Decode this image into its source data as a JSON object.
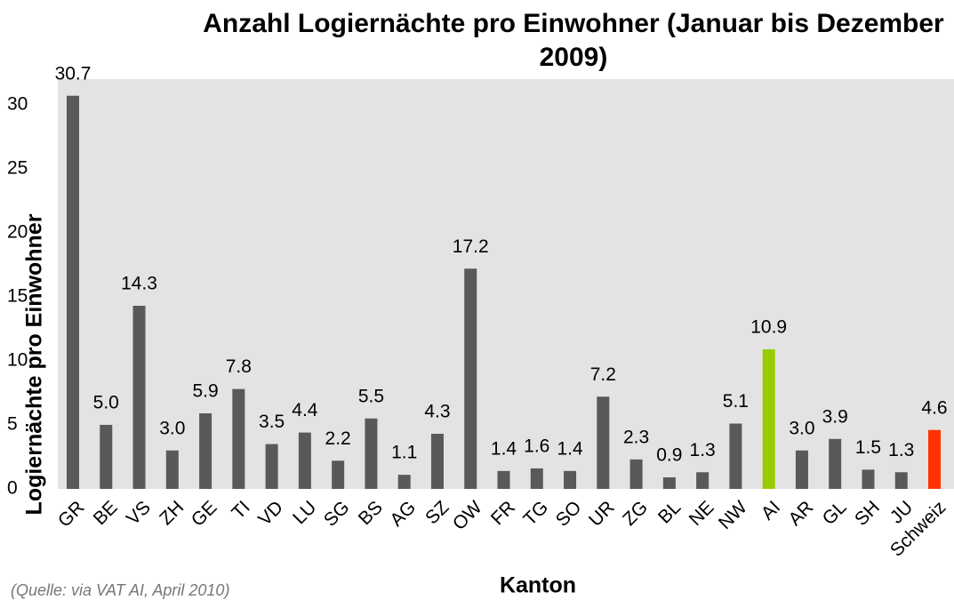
{
  "chart_data": {
    "type": "bar",
    "title": "Anzahl Logiernächte pro Einwohner (Januar bis Dezember 2009)",
    "x_label": "Kanton",
    "y_label": "Logiernächte pro Einwohner",
    "source": "(Quelle: via VAT AI, April 2010)",
    "categories": [
      "GR",
      "BE",
      "VS",
      "ZH",
      "GE",
      "TI",
      "VD",
      "LU",
      "SG",
      "BS",
      "AG",
      "SZ",
      "OW",
      "FR",
      "TG",
      "SO",
      "UR",
      "ZG",
      "BL",
      "NE",
      "NW",
      "AI",
      "AR",
      "GL",
      "SH",
      "JU",
      "Schweiz"
    ],
    "values": [
      30.7,
      5.0,
      14.3,
      3.0,
      5.9,
      7.8,
      3.5,
      4.4,
      2.2,
      5.5,
      1.1,
      4.3,
      17.2,
      1.4,
      1.6,
      1.4,
      7.2,
      2.3,
      0.9,
      1.3,
      5.1,
      10.9,
      3.0,
      3.9,
      1.5,
      1.3,
      4.6
    ],
    "value_labels": [
      "30.7",
      "5.0",
      "14.3",
      "3.0",
      "5.9",
      "7.8",
      "3.5",
      "4.4",
      "2.2",
      "5.5",
      "1.1",
      "4.3",
      "17.2",
      "1.4",
      "1.6",
      "1.4",
      "7.2",
      "2.3",
      "0.9",
      "1.3",
      "5.1",
      "10.9",
      "3.0",
      "3.9",
      "1.5",
      "1.3",
      "4.6"
    ],
    "colors": [
      "#595959",
      "#595959",
      "#595959",
      "#595959",
      "#595959",
      "#595959",
      "#595959",
      "#595959",
      "#595959",
      "#595959",
      "#595959",
      "#595959",
      "#595959",
      "#595959",
      "#595959",
      "#595959",
      "#595959",
      "#595959",
      "#595959",
      "#595959",
      "#595959",
      "#99cc00",
      "#595959",
      "#595959",
      "#595959",
      "#595959",
      "#ff3300"
    ],
    "background": "#e3e3e3",
    "ylim": [
      0,
      32
    ],
    "yticks": [
      0,
      5,
      10,
      15,
      20,
      25,
      30
    ]
  }
}
